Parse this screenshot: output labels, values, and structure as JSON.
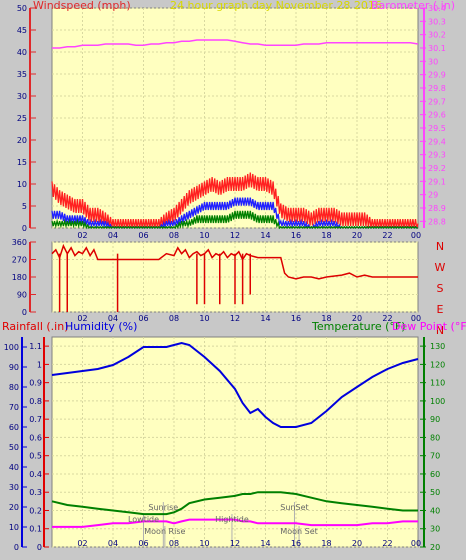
{
  "header": {
    "left_title": "Windspeed (mph)",
    "center_title": "24 hour graph day   November 28 2016",
    "right_title": "Barometer (.in)"
  },
  "colors": {
    "background": "#c8c8c8",
    "plot_bg": "#ffffc0",
    "grid": "#d8d8a0",
    "wind_axis": "#e0282a",
    "baro": "#ff44ff",
    "title_center": "#d8d800",
    "gust": "#ff2020",
    "avg": "#2020ff",
    "low": "#008000",
    "winddir": "#dd0000",
    "humidity": "#0000dd",
    "temperature": "#008000",
    "dewpoint": "#ff00ff",
    "rain_axis": "#e00000"
  },
  "x_tick_labels": [
    "02",
    "04",
    "06",
    "08",
    "10",
    "12",
    "14",
    "16",
    "18",
    "20",
    "22",
    "00"
  ],
  "chart_data": [
    {
      "type": "line",
      "panel": "wind_barometer",
      "y_left": {
        "label": "Windspeed (mph)",
        "ticks": [
          "0",
          "5",
          "10",
          "15",
          "20",
          "25",
          "30",
          "35",
          "40",
          "45",
          "50"
        ],
        "ylim": [
          0,
          50
        ]
      },
      "y_right": {
        "label": "Barometer (.in)",
        "ticks": [
          "28.8",
          "28.9",
          "29",
          "29.1",
          "29.2",
          "29.3",
          "29.4",
          "29.5",
          "29.6",
          "29.7",
          "29.8",
          "29.9",
          "30",
          "30.1",
          "30.2",
          "30.3",
          "30.4"
        ],
        "ylim": [
          28.75,
          30.4
        ]
      },
      "x": [
        0,
        0.5,
        1,
        1.5,
        2,
        2.5,
        3,
        3.5,
        4,
        4.5,
        5,
        5.5,
        6,
        6.5,
        7,
        7.5,
        8,
        8.5,
        9,
        9.5,
        10,
        10.5,
        11,
        11.5,
        12,
        12.5,
        13,
        13.5,
        14,
        14.5,
        15,
        15.5,
        16,
        16.5,
        17,
        17.5,
        18,
        18.5,
        19,
        19.5,
        20,
        20.5,
        21,
        21.5,
        22,
        22.5,
        23,
        23.5,
        24
      ],
      "series": [
        {
          "name": "gust",
          "axis": "left",
          "values": [
            9,
            7,
            6,
            5,
            5,
            3,
            3,
            2,
            1,
            1,
            1,
            1,
            1,
            1,
            1,
            2,
            3,
            5,
            7,
            8,
            9,
            10,
            9,
            10,
            10,
            10,
            11,
            10,
            10,
            9,
            4,
            3,
            3,
            3,
            2,
            3,
            3,
            3,
            2,
            2,
            2,
            2,
            1,
            1,
            1,
            1,
            1,
            1,
            1
          ]
        },
        {
          "name": "average",
          "axis": "left",
          "values": [
            3,
            3,
            2,
            2,
            2,
            1,
            1,
            1,
            0,
            0,
            0,
            0,
            0,
            0,
            0,
            1,
            1,
            2,
            3,
            4,
            5,
            5,
            5,
            5,
            6,
            6,
            6,
            5,
            5,
            5,
            1,
            1,
            1,
            1,
            0,
            1,
            1,
            1,
            0,
            0,
            0,
            0,
            0,
            0,
            0,
            0,
            0,
            0,
            0
          ]
        },
        {
          "name": "low",
          "axis": "left",
          "values": [
            1,
            1,
            1,
            1,
            1,
            0,
            0,
            0,
            0,
            0,
            0,
            0,
            0,
            0,
            0,
            0,
            0,
            1,
            1,
            2,
            2,
            2,
            2,
            2,
            3,
            3,
            3,
            2,
            2,
            2,
            0,
            0,
            0,
            0,
            0,
            0,
            0,
            0,
            0,
            0,
            0,
            0,
            0,
            0,
            0,
            0,
            0,
            0,
            0
          ]
        },
        {
          "name": "barometer",
          "axis": "right",
          "values": [
            30.1,
            30.1,
            30.11,
            30.11,
            30.12,
            30.12,
            30.12,
            30.13,
            30.13,
            30.13,
            30.13,
            30.12,
            30.12,
            30.13,
            30.13,
            30.14,
            30.14,
            30.15,
            30.15,
            30.16,
            30.16,
            30.16,
            30.16,
            30.16,
            30.15,
            30.14,
            30.13,
            30.13,
            30.12,
            30.12,
            30.12,
            30.12,
            30.12,
            30.13,
            30.13,
            30.13,
            30.14,
            30.14,
            30.14,
            30.14,
            30.14,
            30.14,
            30.14,
            30.14,
            30.14,
            30.14,
            30.14,
            30.14,
            30.13
          ]
        }
      ]
    },
    {
      "type": "line",
      "panel": "wind_direction",
      "y_left": {
        "ticks": [
          "0",
          "90",
          "180",
          "270",
          "360"
        ],
        "ylim": [
          0,
          360
        ]
      },
      "y_right": {
        "ticks": [
          "N",
          "W",
          "S",
          "E",
          "N"
        ]
      },
      "x": [
        0,
        0.25,
        0.5,
        0.75,
        1,
        1.25,
        1.5,
        1.75,
        2,
        2.25,
        2.5,
        2.75,
        3,
        3.5,
        4,
        5,
        6,
        7,
        7.5,
        8,
        8.25,
        8.5,
        8.75,
        9,
        9.25,
        9.5,
        9.75,
        10,
        10.25,
        10.5,
        10.75,
        11,
        11.25,
        11.5,
        11.75,
        12,
        12.25,
        12.5,
        12.75,
        13,
        13.5,
        14,
        14.5,
        15,
        15.25,
        15.5,
        16,
        16.5,
        17,
        17.5,
        18,
        19,
        19.5,
        20,
        20.5,
        21,
        22,
        23,
        24
      ],
      "values": [
        300,
        320,
        280,
        340,
        300,
        330,
        290,
        310,
        300,
        330,
        290,
        320,
        270,
        270,
        270,
        270,
        270,
        270,
        300,
        290,
        330,
        300,
        320,
        280,
        300,
        310,
        290,
        300,
        320,
        280,
        300,
        290,
        310,
        280,
        300,
        290,
        310,
        270,
        300,
        290,
        280,
        280,
        280,
        280,
        200,
        180,
        170,
        180,
        180,
        170,
        180,
        190,
        200,
        180,
        190,
        180,
        180,
        180,
        180
      ],
      "dips": [
        [
          0.5,
          0
        ],
        [
          1,
          0
        ],
        [
          4.3,
          0
        ],
        [
          9.5,
          40
        ],
        [
          10,
          40
        ],
        [
          11,
          40
        ],
        [
          12,
          40
        ],
        [
          12.5,
          40
        ],
        [
          13,
          90
        ]
      ]
    },
    {
      "type": "line",
      "panel": "rain_humidity_temperature",
      "y_left_rain": {
        "label": "Rainfall (.in)",
        "ticks": [
          "0",
          "0.1",
          "0.2",
          "0.3",
          "0.4",
          "0.5",
          "0.6",
          "0.7",
          "0.8",
          "0.9",
          "1",
          "1.1"
        ],
        "ylim": [
          0,
          1.15
        ]
      },
      "y_left_humidity": {
        "label": "Humidity (%)",
        "ticks": [
          "0",
          "10",
          "20",
          "30",
          "40",
          "50",
          "60",
          "70",
          "80",
          "90",
          "100"
        ],
        "ylim": [
          0,
          100
        ]
      },
      "y_right": {
        "label": "Temperature (°F)",
        "label2": "Dew Point (°F)",
        "ticks": [
          "20",
          "30",
          "40",
          "50",
          "60",
          "70",
          "80",
          "90",
          "100",
          "110",
          "120",
          "130"
        ],
        "ylim": [
          20,
          135
        ]
      },
      "x": [
        0,
        1,
        2,
        3,
        4,
        5,
        6,
        7,
        7.5,
        8,
        8.5,
        9,
        10,
        11,
        12,
        12.5,
        13,
        13.5,
        14,
        14.5,
        15,
        16,
        17,
        18,
        19,
        20,
        21,
        22,
        23,
        24
      ],
      "series": [
        {
          "name": "humidity",
          "values": [
            86,
            87,
            88,
            89,
            91,
            95,
            100,
            100,
            100,
            101,
            102,
            101,
            95,
            88,
            79,
            72,
            67,
            69,
            65,
            62,
            60,
            60,
            62,
            68,
            75,
            80,
            85,
            89,
            92,
            94
          ]
        },
        {
          "name": "temperature",
          "values": [
            45,
            43,
            42,
            41,
            40,
            39,
            38,
            38,
            38,
            39,
            41,
            44,
            46,
            47,
            48,
            49,
            49,
            50,
            50,
            50,
            50,
            49,
            47,
            45,
            44,
            43,
            42,
            41,
            40,
            40
          ]
        },
        {
          "name": "dew_point",
          "values": [
            31,
            31,
            31,
            32,
            33,
            33,
            34,
            34,
            34,
            33,
            34,
            35,
            35,
            35,
            35,
            34,
            34,
            33,
            33,
            33,
            33,
            33,
            32,
            32,
            32,
            32,
            33,
            33,
            34,
            34
          ]
        }
      ],
      "annotations": [
        {
          "label": "Lowtide",
          "x": 6.0,
          "row": 1
        },
        {
          "label": "Sunrise",
          "x": 7.3,
          "row": 0
        },
        {
          "label": "Moon Rise",
          "x": 7.4,
          "row": 2
        },
        {
          "label": "Hightide",
          "x": 11.8,
          "row": 1
        },
        {
          "label": "SunSet",
          "x": 15.9,
          "row": 0
        },
        {
          "label": "Moon Set",
          "x": 16.2,
          "row": 2
        }
      ]
    }
  ]
}
